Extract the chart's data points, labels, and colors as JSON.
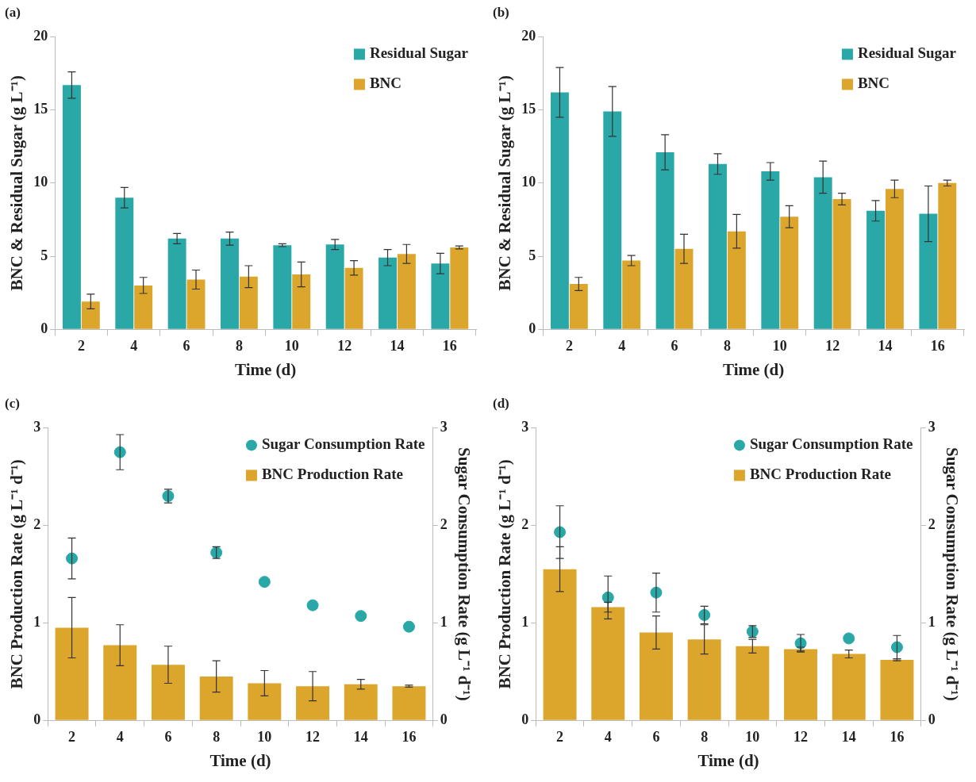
{
  "chart_data": [
    {
      "type": "bar",
      "title": "(a)",
      "xlabel": "Time (d)",
      "ylabel": "BNC & Residual Sugar (g L⁻¹)",
      "categories": [
        "2",
        "4",
        "6",
        "8",
        "10",
        "12",
        "14",
        "16"
      ],
      "ylim": [
        0,
        20
      ],
      "yticks": [
        0,
        5,
        10,
        15,
        20
      ],
      "grid": false,
      "legend": "top right",
      "series": [
        {
          "name": "Residual Sugar",
          "color": "#2aa8a8",
          "values": [
            16.7,
            9.0,
            6.2,
            6.2,
            5.75,
            5.8,
            4.9,
            4.5
          ],
          "errors": [
            0.9,
            0.7,
            0.35,
            0.45,
            0.1,
            0.35,
            0.55,
            0.7
          ]
        },
        {
          "name": "BNC",
          "color": "#dca62c",
          "values": [
            1.9,
            3.0,
            3.4,
            3.6,
            3.75,
            4.2,
            5.15,
            5.6
          ],
          "errors": [
            0.5,
            0.55,
            0.65,
            0.75,
            0.85,
            0.5,
            0.65,
            0.1
          ]
        }
      ]
    },
    {
      "type": "bar",
      "title": "(b)",
      "xlabel": "Time (d)",
      "ylabel": "BNC & Residual Sugar (g L⁻¹)",
      "categories": [
        "2",
        "4",
        "6",
        "8",
        "10",
        "12",
        "14",
        "16"
      ],
      "ylim": [
        0,
        20
      ],
      "yticks": [
        0,
        5,
        10,
        15,
        20
      ],
      "grid": false,
      "legend": "top right",
      "series": [
        {
          "name": "Residual Sugar",
          "color": "#2aa8a8",
          "values": [
            16.2,
            14.9,
            12.1,
            11.3,
            10.8,
            10.4,
            8.1,
            7.9
          ],
          "errors": [
            1.7,
            1.7,
            1.2,
            0.7,
            0.6,
            1.1,
            0.7,
            1.9
          ]
        },
        {
          "name": "BNC",
          "color": "#dca62c",
          "values": [
            3.1,
            4.7,
            5.5,
            6.7,
            7.7,
            8.9,
            9.6,
            10.0
          ],
          "errors": [
            0.45,
            0.35,
            1.0,
            1.15,
            0.75,
            0.4,
            0.6,
            0.2
          ]
        }
      ]
    },
    {
      "type": "bar",
      "title": "(c)",
      "xlabel": "Time (d)",
      "ylabel": "BNC Production Rate (g L⁻¹ d⁻¹)",
      "y2label": "Sugar Consumption Rate (g L⁻¹ d⁻¹)",
      "categories": [
        "2",
        "4",
        "6",
        "8",
        "10",
        "12",
        "14",
        "16"
      ],
      "ylim": [
        0,
        3
      ],
      "yticks": [
        0,
        1,
        2,
        3
      ],
      "y2lim": [
        0,
        3
      ],
      "y2ticks": [
        0,
        1,
        2,
        3
      ],
      "grid": false,
      "legend": "top right",
      "marker": "circle",
      "series": [
        {
          "name": "Sugar Consumption Rate",
          "type": "scatter",
          "axis": "y2",
          "color": "#2aa8a8",
          "x": [
            "2",
            "4",
            "6",
            "8",
            "10",
            "12",
            "14",
            "16"
          ],
          "values": [
            1.66,
            2.75,
            2.3,
            1.72,
            1.42,
            1.18,
            1.07,
            0.96
          ],
          "errors": [
            0.21,
            0.18,
            0.07,
            0.06,
            null,
            null,
            null,
            null
          ]
        },
        {
          "name": "BNC Production Rate",
          "color": "#dca62c",
          "values": [
            0.95,
            0.77,
            0.57,
            0.45,
            0.38,
            0.35,
            0.37,
            0.35
          ],
          "errors": [
            0.31,
            0.21,
            0.19,
            0.16,
            0.13,
            0.15,
            0.05,
            0.01
          ]
        }
      ]
    },
    {
      "type": "bar",
      "title": "(d)",
      "xlabel": "Time (d)",
      "ylabel": "BNC Production Rate (g L⁻¹ d⁻¹)",
      "y2label": "Sugar Consumption Rate (g L⁻¹ d⁻¹)",
      "categories": [
        "2",
        "4",
        "6",
        "8",
        "10",
        "12",
        "14",
        "16"
      ],
      "ylim": [
        0,
        3
      ],
      "yticks": [
        0,
        1,
        2,
        3
      ],
      "y2lim": [
        0,
        3
      ],
      "y2ticks": [
        0,
        1,
        2,
        3
      ],
      "grid": false,
      "legend": "top right",
      "marker": "circle",
      "series": [
        {
          "name": "Sugar Consumption Rate",
          "type": "scatter",
          "axis": "y2",
          "color": "#2aa8a8",
          "x": [
            "2",
            "4",
            "6",
            "8",
            "10",
            "12",
            "14",
            "16"
          ],
          "values": [
            1.93,
            1.26,
            1.31,
            1.08,
            0.91,
            0.79,
            0.84,
            0.75
          ],
          "errors": [
            0.27,
            0.22,
            0.2,
            0.09,
            0.06,
            0.09,
            null,
            0.12
          ]
        },
        {
          "name": "BNC Production Rate",
          "color": "#dca62c",
          "values": [
            1.55,
            1.16,
            0.9,
            0.83,
            0.76,
            0.73,
            0.68,
            0.62
          ],
          "errors": [
            0.23,
            0.05,
            0.17,
            0.15,
            0.07,
            0.02,
            0.04,
            0.01
          ]
        }
      ]
    }
  ]
}
